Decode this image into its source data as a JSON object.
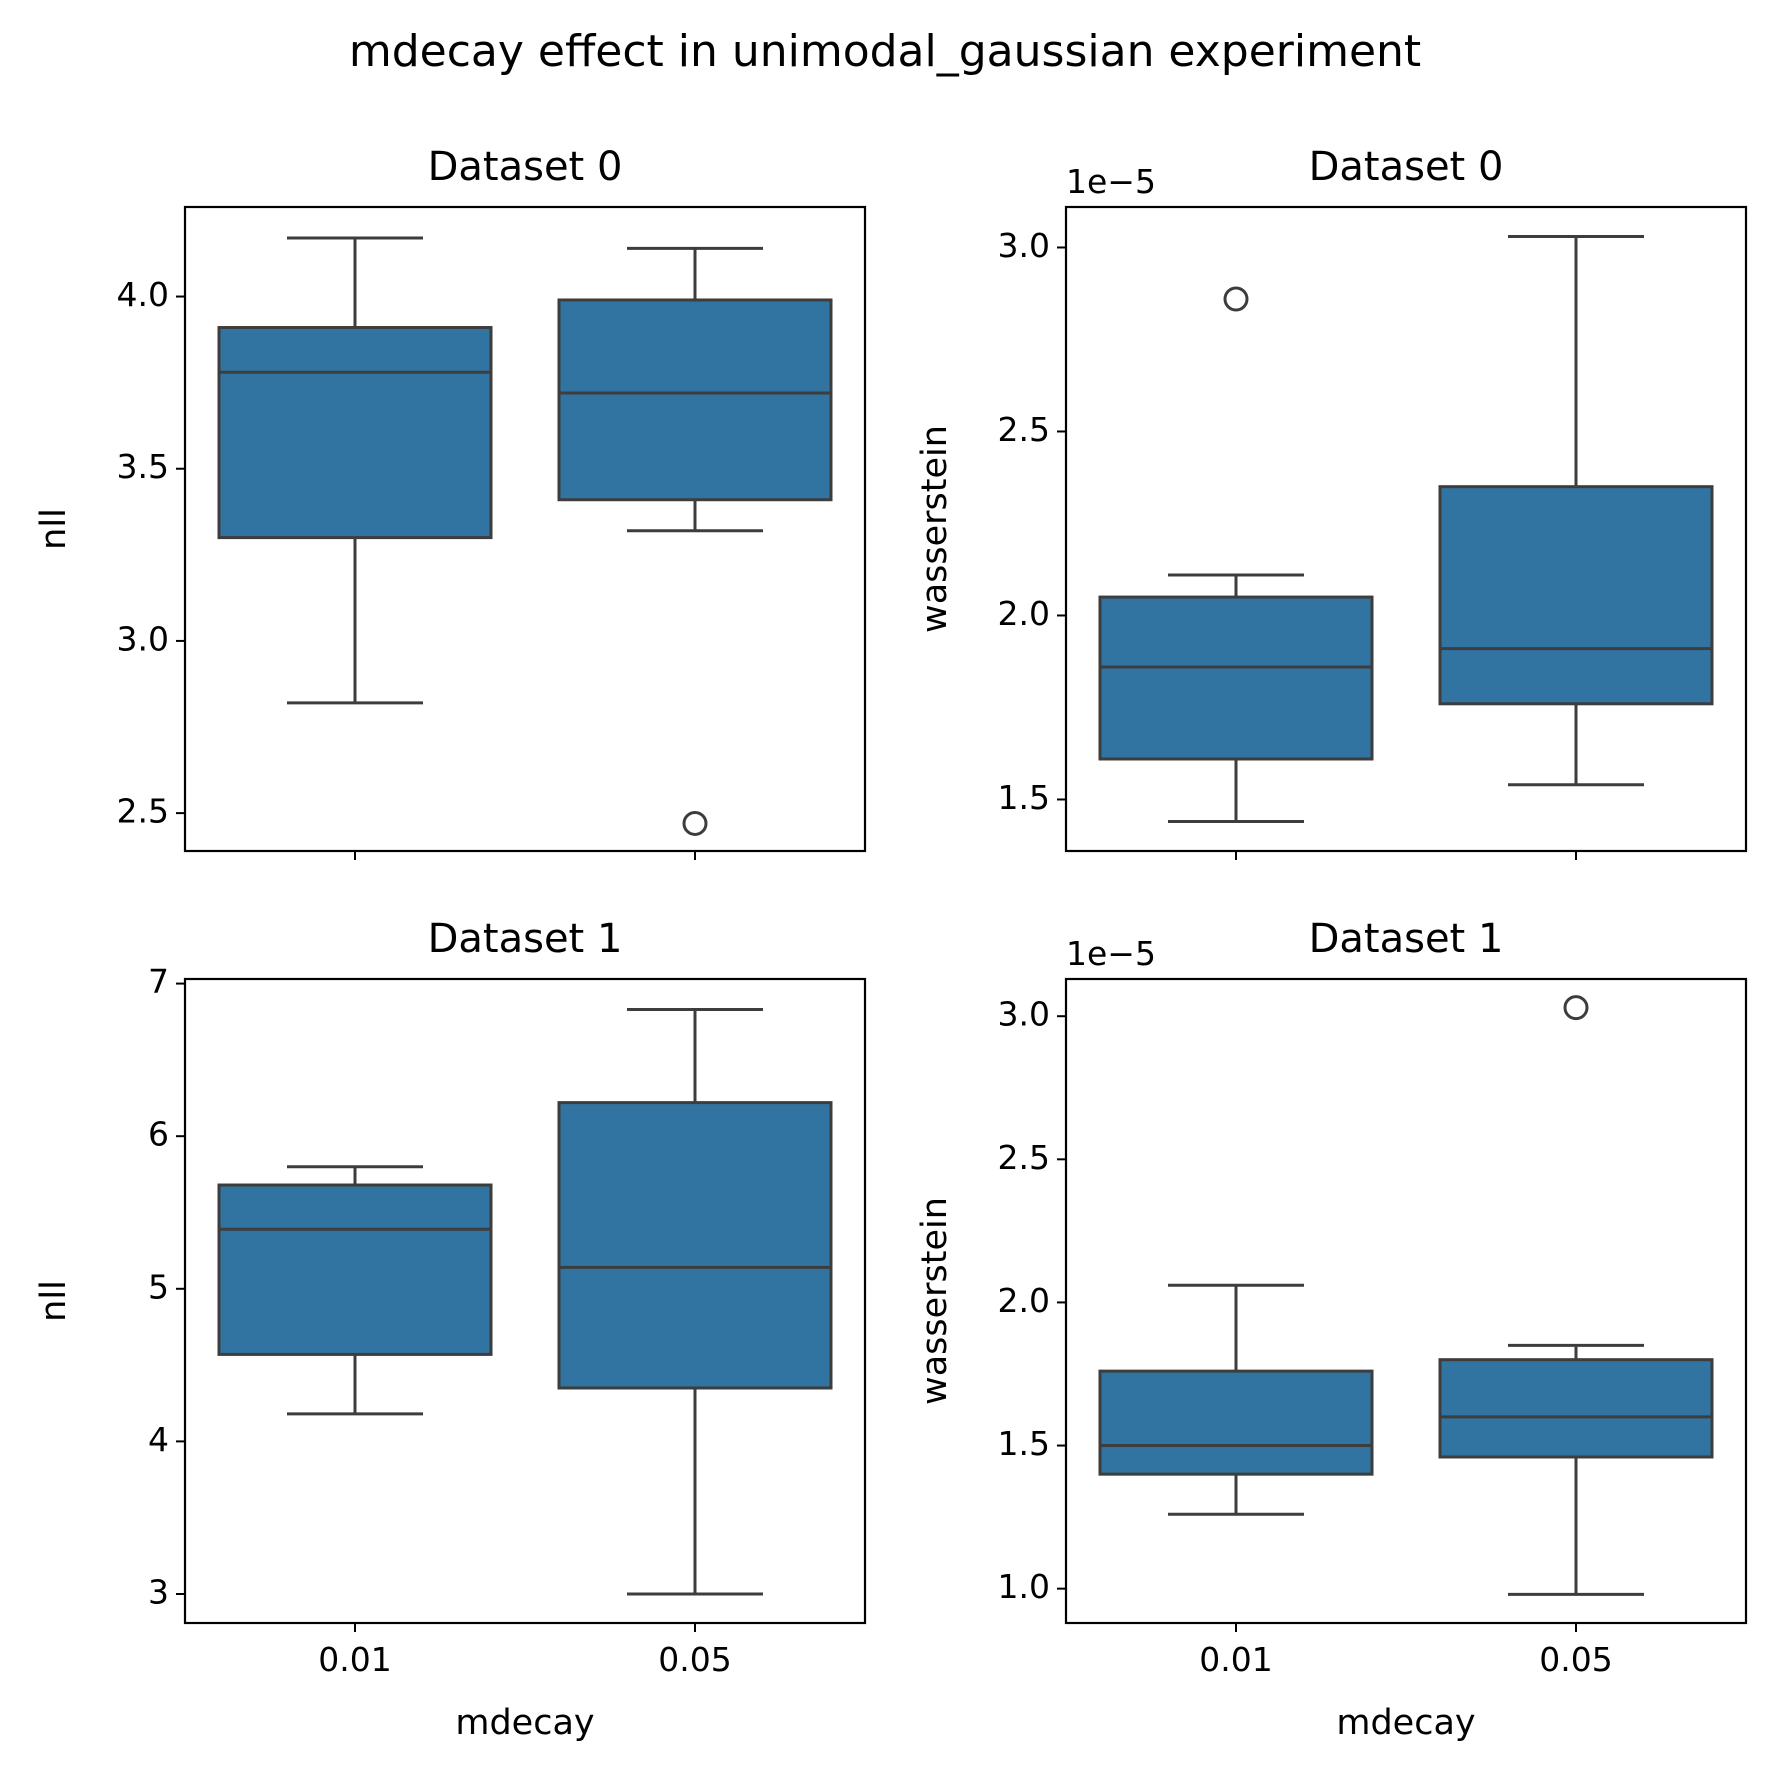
{
  "figure_title": "mdecay effect in unimodal_gaussian experiment",
  "colors": {
    "box_fill": "#3274a1",
    "box_edge": "#3d3d3d",
    "axes": "#000000"
  },
  "chart_data": [
    {
      "type": "box",
      "title": "Dataset 0",
      "xlabel": "",
      "ylabel": "nll",
      "offset_text": "",
      "categories": [
        "0.01",
        "0.05"
      ],
      "ylim": [
        2.39,
        4.26
      ],
      "yticks": [
        2.5,
        3.0,
        3.5,
        4.0
      ],
      "ytick_labels": [
        "2.5",
        "3.0",
        "3.5",
        "4.0"
      ],
      "show_xtick_labels": false,
      "boxes": [
        {
          "whisker_low": 2.82,
          "q1": 3.3,
          "median": 3.78,
          "q3": 3.91,
          "whisker_high": 4.17,
          "outliers": []
        },
        {
          "whisker_low": 3.32,
          "q1": 3.41,
          "median": 3.72,
          "q3": 3.99,
          "whisker_high": 4.14,
          "outliers": [
            2.47
          ]
        }
      ]
    },
    {
      "type": "box",
      "title": "Dataset 0",
      "xlabel": "",
      "ylabel": "wasserstein",
      "offset_text": "1e−5",
      "categories": [
        "0.01",
        "0.05"
      ],
      "ylim": [
        1.36,
        3.11
      ],
      "yticks": [
        1.5,
        2.0,
        2.5,
        3.0
      ],
      "ytick_labels": [
        "1.5",
        "2.0",
        "2.5",
        "3.0"
      ],
      "show_xtick_labels": false,
      "boxes": [
        {
          "whisker_low": 1.44,
          "q1": 1.61,
          "median": 1.86,
          "q3": 2.05,
          "whisker_high": 2.11,
          "outliers": [
            2.86
          ]
        },
        {
          "whisker_low": 1.54,
          "q1": 1.76,
          "median": 1.91,
          "q3": 2.35,
          "whisker_high": 3.03,
          "outliers": []
        }
      ]
    },
    {
      "type": "box",
      "title": "Dataset 1",
      "xlabel": "mdecay",
      "ylabel": "nll",
      "offset_text": "",
      "categories": [
        "0.01",
        "0.05"
      ],
      "ylim": [
        2.81,
        7.03
      ],
      "yticks": [
        3,
        4,
        5,
        6,
        7
      ],
      "ytick_labels": [
        "3",
        "4",
        "5",
        "6",
        "7"
      ],
      "show_xtick_labels": true,
      "boxes": [
        {
          "whisker_low": 4.18,
          "q1": 4.57,
          "median": 5.39,
          "q3": 5.68,
          "whisker_high": 5.8,
          "outliers": []
        },
        {
          "whisker_low": 3.0,
          "q1": 4.35,
          "median": 5.14,
          "q3": 6.22,
          "whisker_high": 6.83,
          "outliers": []
        }
      ]
    },
    {
      "type": "box",
      "title": "Dataset 1",
      "xlabel": "mdecay",
      "ylabel": "wasserstein",
      "offset_text": "1e−5",
      "categories": [
        "0.01",
        "0.05"
      ],
      "ylim": [
        0.88,
        3.13
      ],
      "yticks": [
        1.0,
        1.5,
        2.0,
        2.5,
        3.0
      ],
      "ytick_labels": [
        "1.0",
        "1.5",
        "2.0",
        "2.5",
        "3.0"
      ],
      "show_xtick_labels": true,
      "boxes": [
        {
          "whisker_low": 1.26,
          "q1": 1.4,
          "median": 1.5,
          "q3": 1.76,
          "whisker_high": 2.06,
          "outliers": []
        },
        {
          "whisker_low": 0.98,
          "q1": 1.46,
          "median": 1.6,
          "q3": 1.8,
          "whisker_high": 1.85,
          "outliers": [
            3.03
          ]
        }
      ]
    }
  ]
}
